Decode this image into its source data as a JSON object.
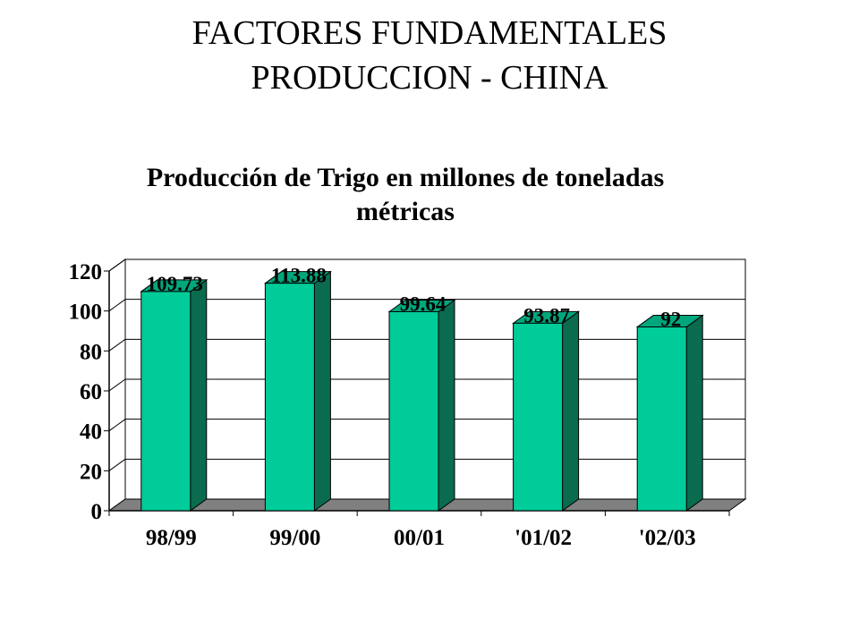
{
  "slide": {
    "title_line1": "FACTORES FUNDAMENTALES",
    "title_line2": "PRODUCCION - CHINA"
  },
  "chart_data": {
    "type": "bar",
    "title_line1": "Producción de Trigo en millones de toneladas",
    "title_line2": "métricas",
    "categories": [
      "98/99",
      "99/00",
      "00/01",
      "'01/02",
      "'02/03"
    ],
    "values": [
      109.73,
      113.88,
      99.64,
      93.87,
      92
    ],
    "value_labels": [
      "109.73",
      "113.88",
      "99.64",
      "93.87",
      "92"
    ],
    "ylim": [
      0,
      120
    ],
    "yticks": [
      0,
      20,
      40,
      60,
      80,
      100,
      120
    ],
    "grid": true,
    "legend": "none",
    "colors": {
      "bar_front": "#00CC99",
      "bar_side": "#0B6B4F",
      "bar_top": "#00A77C",
      "floor": "#808080",
      "grid": "#000000"
    }
  }
}
